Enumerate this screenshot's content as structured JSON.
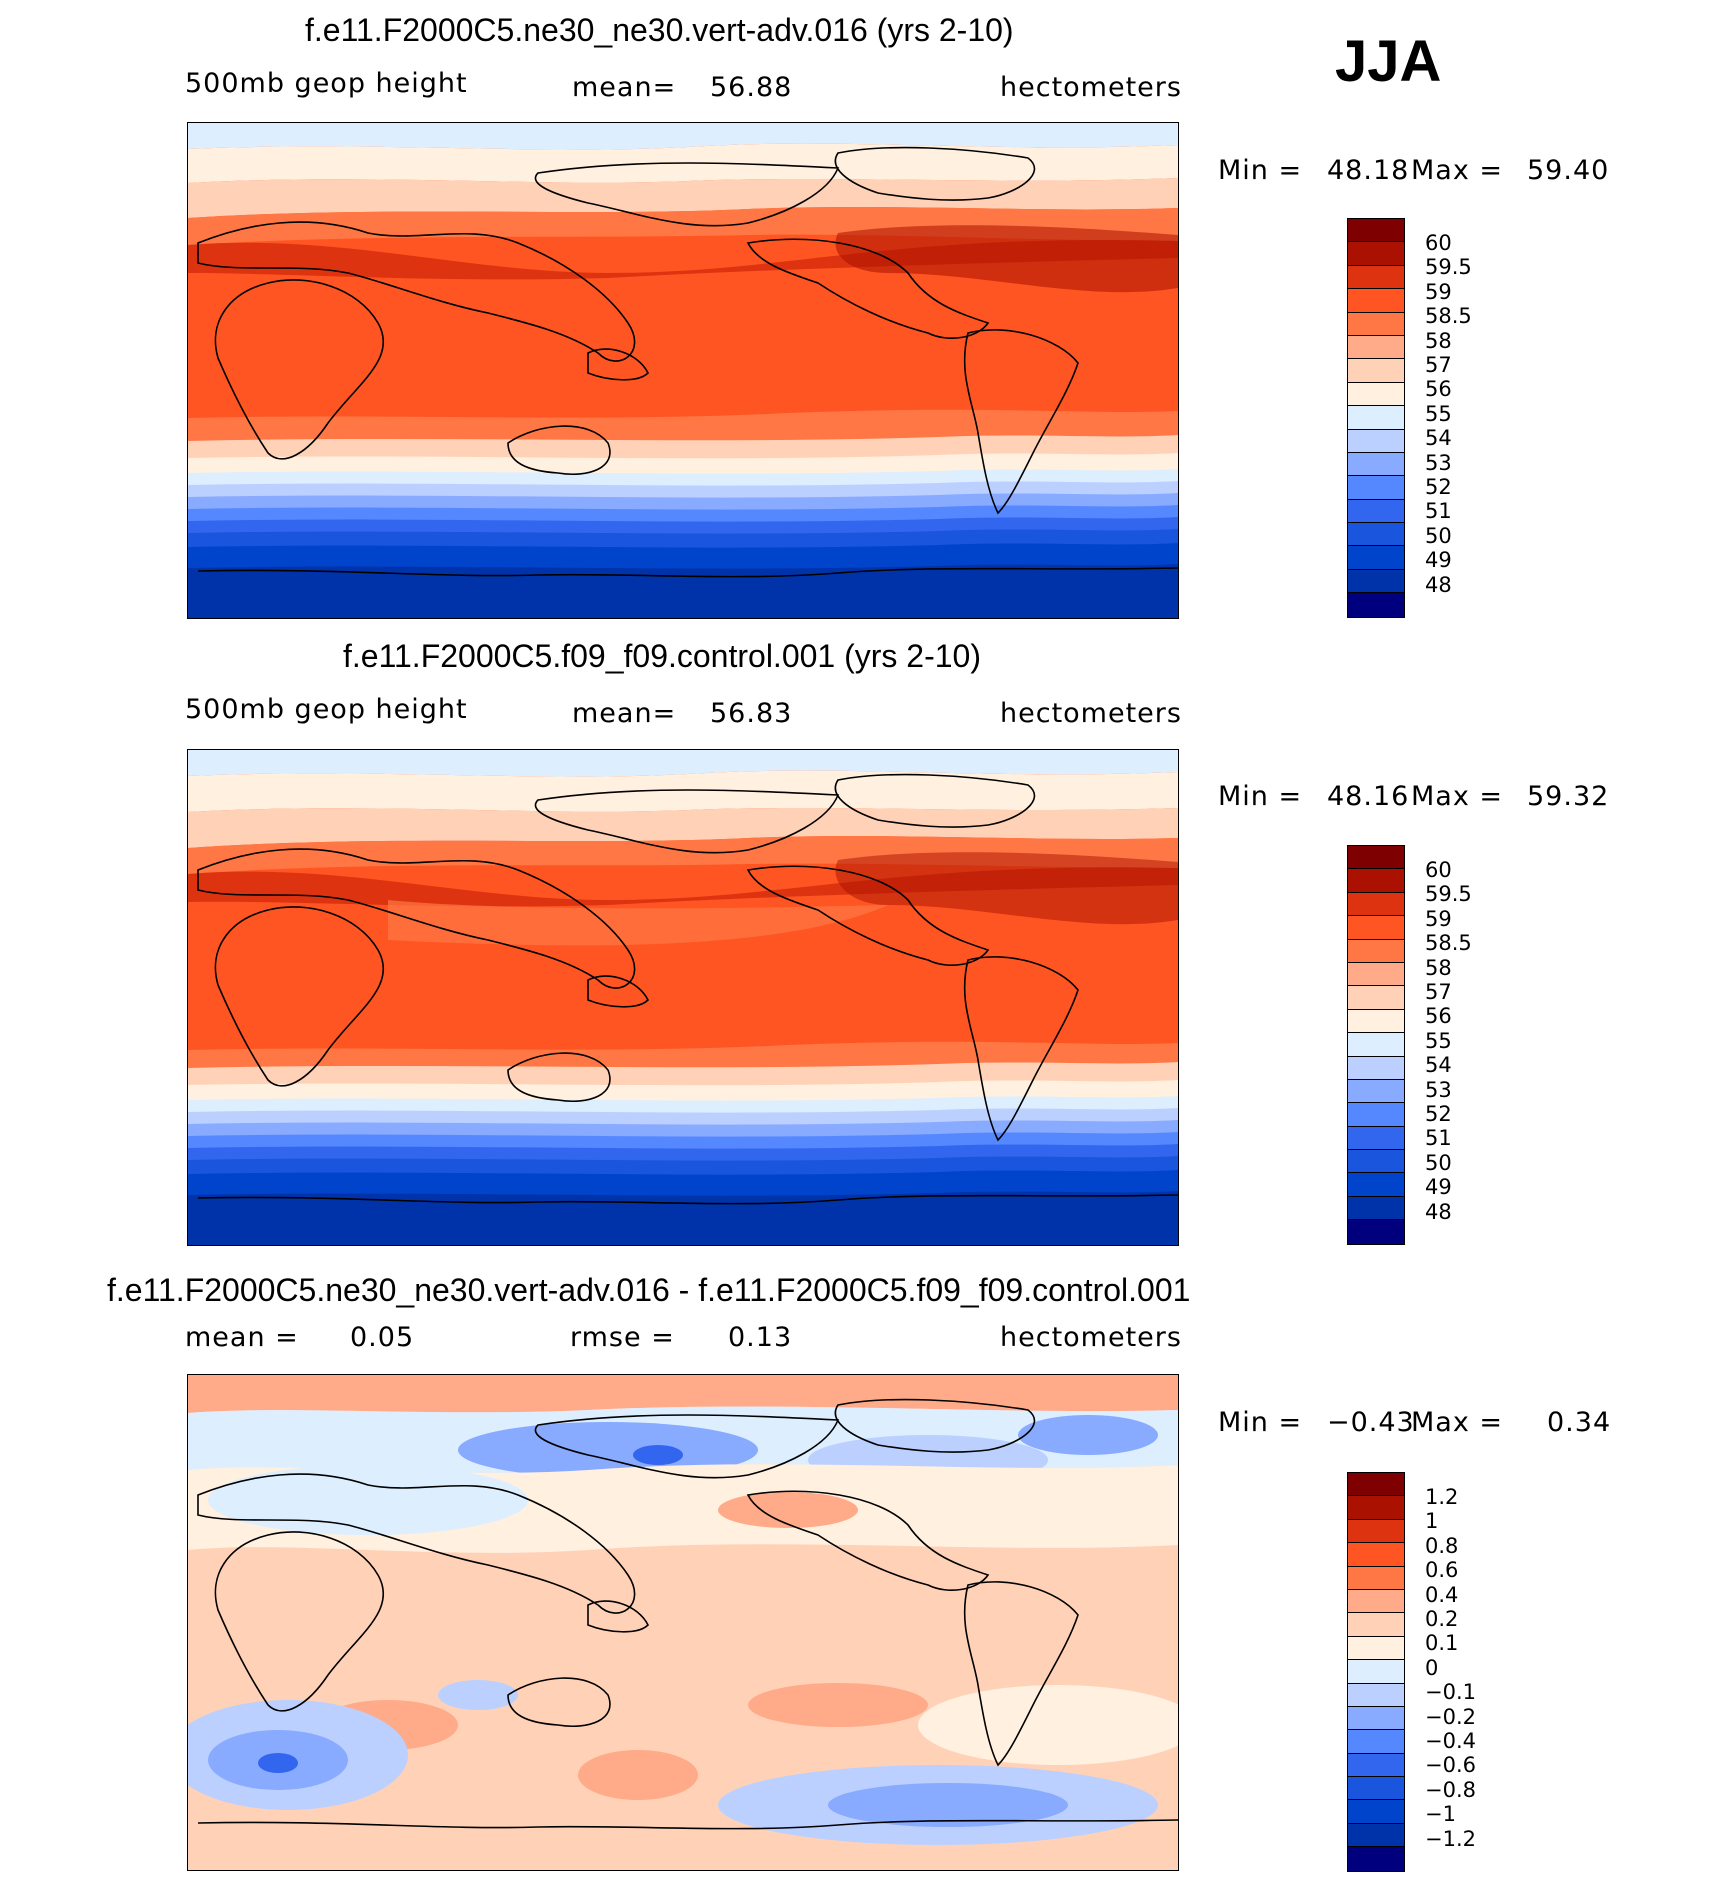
{
  "season": "JJA",
  "colors": {
    "abs": [
      "#00007f",
      "#0033aa",
      "#0044cc",
      "#1a55dd",
      "#3366ee",
      "#5588ff",
      "#88aaff",
      "#bbd0ff",
      "#ddeeff",
      "#fff0e0",
      "#ffd2b8",
      "#ffaa88",
      "#ff7744",
      "#ff5522",
      "#dd3311",
      "#aa1100",
      "#7f0000"
    ],
    "diff": [
      "#00007f",
      "#0033aa",
      "#0044cc",
      "#1a55dd",
      "#3366ee",
      "#5588ff",
      "#88aaff",
      "#bbd0ff",
      "#ddeeff",
      "#fff0e0",
      "#ffd2b8",
      "#ffaa88",
      "#ff7744",
      "#ff5522",
      "#dd3311",
      "#aa1100",
      "#7f0000"
    ]
  },
  "panels": [
    {
      "title": "f.e11.F2000C5.ne30_ne30.vert-adv.016 (yrs 2-10)",
      "variable": "500mb geop height",
      "stat1": "mean=",
      "stat1_value": "56.88",
      "units": "hectometers",
      "min_label": "Min =",
      "min_value": "48.18",
      "max_label": "Max =",
      "max_value": "59.40",
      "colorbar_labels": [
        "60",
        "59.5",
        "59",
        "58.5",
        "58",
        "57",
        "56",
        "55",
        "54",
        "53",
        "52",
        "51",
        "50",
        "49",
        "48"
      ]
    },
    {
      "title": "f.e11.F2000C5.f09_f09.control.001 (yrs 2-10)",
      "variable": "500mb geop height",
      "stat1": "mean=",
      "stat1_value": "56.83",
      "units": "hectometers",
      "min_label": "Min =",
      "min_value": "48.16",
      "max_label": "Max =",
      "max_value": "59.32",
      "colorbar_labels": [
        "60",
        "59.5",
        "59",
        "58.5",
        "58",
        "57",
        "56",
        "55",
        "54",
        "53",
        "52",
        "51",
        "50",
        "49",
        "48"
      ]
    },
    {
      "title": "f.e11.F2000C5.ne30_ne30.vert-adv.016 - f.e11.F2000C5.f09_f09.control.001",
      "stat1": "mean =",
      "stat1_value": "0.05",
      "stat2": "rmse =",
      "stat2_value": "0.13",
      "units": "hectometers",
      "min_label": "Min =",
      "min_value": "−0.43",
      "max_label": "Max =",
      "max_value": "0.34",
      "colorbar_labels": [
        "1.2",
        "1",
        "0.8",
        "0.6",
        "0.4",
        "0.2",
        "0.1",
        "0",
        "−0.1",
        "−0.2",
        "−0.4",
        "−0.6",
        "−0.8",
        "−1",
        "−1.2"
      ]
    }
  ]
}
